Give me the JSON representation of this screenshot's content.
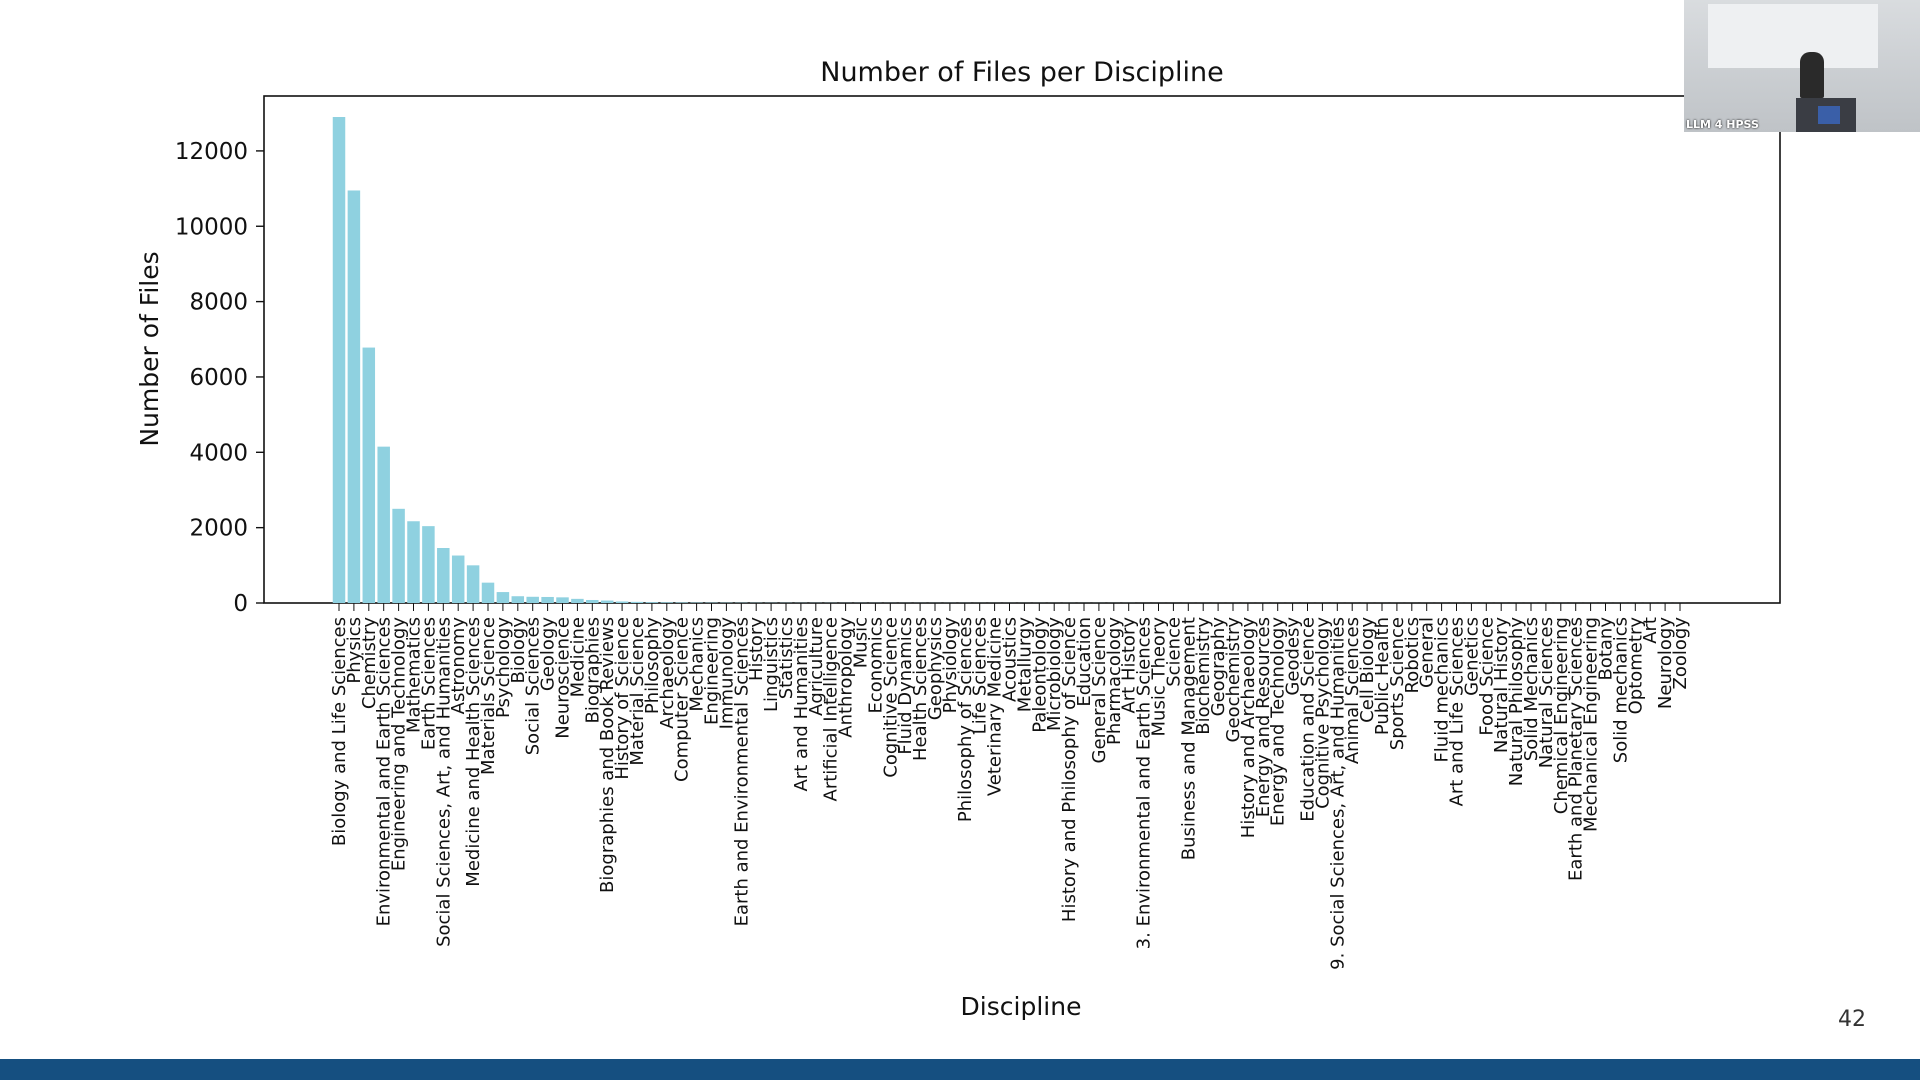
{
  "page_number": "42",
  "webcam": {
    "label": "LLM 4 HPSS"
  },
  "colors": {
    "bar": "#8fd1e0",
    "footer": "#154f80"
  },
  "chart_data": {
    "type": "bar",
    "title": "Number of Files per Discipline",
    "xlabel": "Discipline",
    "ylabel": "Number of Files",
    "ylim": [
      0,
      13500
    ],
    "yticks": [
      0,
      2000,
      4000,
      6000,
      8000,
      10000,
      12000
    ],
    "grid": false,
    "categories": [
      "Biology and Life Sciences",
      "Physics",
      "Chemistry",
      "Environmental and Earth Sciences",
      "Engineering and Technology",
      "Mathematics",
      "Earth Sciences",
      "Social Sciences, Art, and Humanities",
      "Astronomy",
      "Medicine and Health Sciences",
      "Materials Science",
      "Psychology",
      "Biology",
      "Social Sciences",
      "Geology",
      "Neuroscience",
      "Medicine",
      "Biographies",
      "Biographies and Book Reviews",
      "History of Science",
      "Material Science",
      "Philosophy",
      "Archaeology",
      "Computer Science",
      "Mechanics",
      "Engineering",
      "Immunology",
      "Earth and Environmental Sciences",
      "History",
      "Linguistics",
      "Statistics",
      "Art and Humanities",
      "Agriculture",
      "Artificial Intelligence",
      "Anthropology",
      "Music",
      "Economics",
      "Cognitive Science",
      "Fluid Dynamics",
      "Health Sciences",
      "Geophysics",
      "Physiology",
      "Philosophy of Sciences",
      "Life Sciences",
      "Veterinary Medicine",
      "Acoustics",
      "Metallurgy",
      "Paleontology",
      "Microbiology",
      "History and Philosophy of Science",
      "Education",
      "General Science",
      "Pharmacology",
      "Art History",
      "3. Environmental and Earth Sciences",
      "Music Theory",
      "Science",
      "Business and Management",
      "Biochemistry",
      "Geography",
      "Geochemistry",
      "History and Archaeology",
      "Energy and Resources",
      "Energy and Technology",
      "Geodesy",
      "Education and Science",
      "Cognitive Psychology",
      "9. Social Sciences, Art, and Humanities",
      "Animal Sciences",
      "Cell Biology",
      "Public Health",
      "Sports Science",
      "Robotics",
      "General",
      "Fluid mechanics",
      "Art and Life Sciences",
      "Genetics",
      "Food Science",
      "Natural History",
      "Natural Philosophy",
      "Solid Mechanics",
      "Natural Sciences",
      "Chemical Engineering",
      "Earth and Planetary Sciences",
      "Mechanical Engineering",
      "Botany",
      "Solid mechanics",
      "Optometry",
      "Art",
      "Neurology",
      "Zoology"
    ],
    "values": [
      12900,
      10950,
      6780,
      4150,
      2500,
      2170,
      2040,
      1460,
      1260,
      1000,
      540,
      290,
      180,
      165,
      160,
      150,
      110,
      80,
      65,
      40,
      30,
      22,
      18,
      15,
      12,
      10,
      9,
      8,
      7,
      6,
      6,
      5,
      5,
      5,
      4,
      4,
      4,
      3,
      3,
      3,
      3,
      3,
      3,
      2,
      2,
      2,
      2,
      2,
      2,
      2,
      2,
      2,
      2,
      2,
      1,
      1,
      1,
      1,
      1,
      1,
      1,
      1,
      1,
      1,
      1,
      1,
      1,
      1,
      1,
      1,
      1,
      1,
      1,
      1,
      1,
      1,
      1,
      1,
      1,
      1,
      1,
      1,
      1,
      1,
      1,
      1,
      1,
      1,
      1,
      1,
      1
    ]
  }
}
